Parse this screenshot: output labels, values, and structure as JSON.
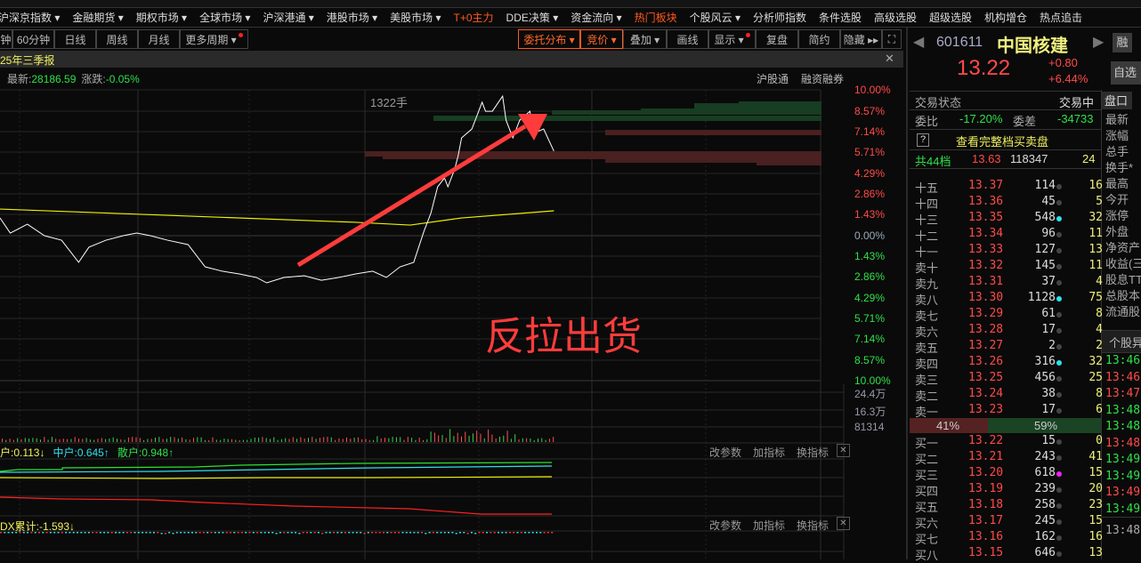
{
  "menu": [
    "沪深京指数 ▾",
    "金融期货 ▾",
    "期权市场 ▾",
    "全球市场 ▾",
    "沪深港通 ▾",
    "港股市场 ▾",
    "美股市场 ▾",
    "T+0主力",
    "DDE决策 ▾",
    "资金流向 ▾",
    "热门板块",
    "个股风云 ▾",
    "分析师指数",
    "条件选股",
    "高级选股",
    "超级选股",
    "机构增仓",
    "热点追击"
  ],
  "menu_hot": [
    7,
    10
  ],
  "toolbar": {
    "min": "钟",
    "min60": "60分钟",
    "day": "日线",
    "week": "周线",
    "month": "月线",
    "more": "更多周期 ▾",
    "entrust": "委托分布 ▾",
    "auction": "竞价 ▾",
    "overlay": "叠加 ▾",
    "draw": "画线",
    "display": "显示 ▾",
    "review": "复盘",
    "brief": "简约",
    "hide": "隐藏 ▸▸",
    "fullscreen": "⛶"
  },
  "title_strip": {
    "text": "25年三季报",
    "close": "✕"
  },
  "info": {
    "latest_label": "最新:",
    "latest": "28186.59",
    "change_label": "涨跌:",
    "change": "-0.05%",
    "tag1": "沪股通",
    "tag2": "融资融券"
  },
  "chart": {
    "volume_hint": "1322手",
    "annotation": "反拉出货",
    "axis_up": [
      "10.00%",
      "8.57%",
      "7.14%",
      "5.71%",
      "4.29%",
      "2.86%",
      "1.43%"
    ],
    "axis_zero": "0.00%",
    "axis_down": [
      "1.43%",
      "2.86%",
      "4.29%",
      "5.71%",
      "7.14%",
      "8.57%",
      "10.00%"
    ],
    "volume_axis": [
      "24.4万",
      "16.3万",
      "81314"
    ],
    "price_series": [
      [
        0,
        1.22
      ],
      [
        3,
        0.18
      ],
      [
        8,
        0.79
      ],
      [
        13,
        0
      ],
      [
        18,
        -0.31
      ],
      [
        23,
        -1.83
      ],
      [
        26,
        -0.79
      ],
      [
        31,
        -0.31
      ],
      [
        36,
        0
      ],
      [
        40,
        0.18
      ],
      [
        44,
        0
      ],
      [
        49,
        -0.31
      ],
      [
        55,
        -0.61
      ],
      [
        60,
        -2.14
      ],
      [
        65,
        -2.44
      ],
      [
        70,
        -2.63
      ],
      [
        75,
        -2.87
      ],
      [
        78,
        -3.24
      ],
      [
        83,
        -2.87
      ],
      [
        89,
        -2.75
      ],
      [
        94,
        -3.06
      ],
      [
        99,
        -2.87
      ],
      [
        104,
        -2.63
      ],
      [
        109,
        -2.44
      ],
      [
        113,
        -2.87
      ],
      [
        117,
        -2.14
      ],
      [
        121,
        -1.83
      ],
      [
        124,
        0.31
      ],
      [
        126,
        1.53
      ],
      [
        128,
        3.36
      ],
      [
        130,
        3.97
      ],
      [
        131,
        3.36
      ],
      [
        133,
        4.58
      ],
      [
        134,
        5.5
      ],
      [
        135,
        6.72
      ],
      [
        138,
        7.33
      ],
      [
        141,
        9.17
      ],
      [
        142,
        8.55
      ],
      [
        144,
        8.55
      ],
      [
        147,
        9.59
      ],
      [
        148,
        7.94
      ],
      [
        150,
        6.72
      ],
      [
        152,
        7.94
      ],
      [
        155,
        8.55
      ],
      [
        156,
        7.03
      ],
      [
        159,
        7.33
      ],
      [
        162,
        5.81
      ]
    ],
    "avg_series": [
      [
        0,
        1.83
      ],
      [
        104,
        0.92
      ],
      [
        120,
        0.73
      ],
      [
        135,
        1.22
      ],
      [
        162,
        1.71
      ]
    ],
    "colors": {
      "price": "#ffffff",
      "avg": "#f0f000",
      "up": "#ff4a4a",
      "down": "#2ee04a"
    }
  },
  "indicator1": {
    "big": "户:0.113↓",
    "mid": "中户:0.645↑",
    "small": "散户:0.948↑",
    "btns": [
      "改参数",
      "加指标",
      "换指标"
    ],
    "close": "✕"
  },
  "indicator2": {
    "dx": "DX累计:-1.593↓",
    "btns": [
      "改参数",
      "加指标",
      "换指标"
    ],
    "close": "✕"
  },
  "quote": {
    "code": "601611",
    "name": "中国核建",
    "price": "13.22",
    "change": "+0.80",
    "change_pct": "+6.44%",
    "btn_margin": "融",
    "btn_watch": "自选"
  },
  "status": {
    "label": "交易状态",
    "value": "交易中",
    "tab": "盘口",
    "ratio_label": "委比",
    "ratio": "-17.20%",
    "diff_label": "委差",
    "diff": "-34733",
    "help": "?",
    "full_book": "查看完整档买卖盘",
    "total_label": "共44档",
    "total_price": "13.63",
    "total_vol": "118347",
    "total_cnt": "24"
  },
  "asks": [
    {
      "l": "十五",
      "p": "13.37",
      "v": "114",
      "d": "gray",
      "n": "16"
    },
    {
      "l": "十四",
      "p": "13.36",
      "v": "45",
      "d": "gray",
      "n": "5"
    },
    {
      "l": "十三",
      "p": "13.35",
      "v": "548",
      "d": "cyan",
      "n": "32"
    },
    {
      "l": "十二",
      "p": "13.34",
      "v": "96",
      "d": "gray",
      "n": "11"
    },
    {
      "l": "十一",
      "p": "13.33",
      "v": "127",
      "d": "gray",
      "n": "13"
    },
    {
      "l": "卖十",
      "p": "13.32",
      "v": "145",
      "d": "gray",
      "n": "11"
    },
    {
      "l": "卖九",
      "p": "13.31",
      "v": "37",
      "d": "gray",
      "n": "4"
    },
    {
      "l": "卖八",
      "p": "13.30",
      "v": "1128",
      "d": "cyan",
      "n": "75"
    },
    {
      "l": "卖七",
      "p": "13.29",
      "v": "61",
      "d": "gray",
      "n": "8"
    },
    {
      "l": "卖六",
      "p": "13.28",
      "v": "17",
      "d": "gray",
      "n": "4"
    },
    {
      "l": "卖五",
      "p": "13.27",
      "v": "2",
      "d": "gray",
      "n": "2"
    },
    {
      "l": "卖四",
      "p": "13.26",
      "v": "316",
      "d": "cyan",
      "n": "32"
    },
    {
      "l": "卖三",
      "p": "13.25",
      "v": "456",
      "d": "gray",
      "n": "25"
    },
    {
      "l": "卖二",
      "p": "13.24",
      "v": "38",
      "d": "gray",
      "n": "8"
    },
    {
      "l": "卖一",
      "p": "13.23",
      "v": "17",
      "d": "gray",
      "n": "6"
    }
  ],
  "balance": {
    "buy_pct": "41%",
    "sell_pct": "59%",
    "buy_value": 41
  },
  "bids": [
    {
      "l": "买一",
      "p": "13.22",
      "v": "15",
      "d": "gray",
      "n": "0"
    },
    {
      "l": "买二",
      "p": "13.21",
      "v": "243",
      "d": "gray",
      "n": "41"
    },
    {
      "l": "买三",
      "p": "13.20",
      "v": "618",
      "d": "magenta",
      "n": "15"
    },
    {
      "l": "买四",
      "p": "13.19",
      "v": "239",
      "d": "gray",
      "n": "20"
    },
    {
      "l": "买五",
      "p": "13.18",
      "v": "258",
      "d": "gray",
      "n": "23"
    },
    {
      "l": "买六",
      "p": "13.17",
      "v": "245",
      "d": "gray",
      "n": "15"
    },
    {
      "l": "买七",
      "p": "13.16",
      "v": "162",
      "d": "gray",
      "n": "16"
    },
    {
      "l": "买八",
      "p": "13.15",
      "v": "646",
      "d": "gray",
      "n": "13"
    }
  ],
  "side_labels": [
    "最新",
    "涨幅",
    "总手",
    "换手*",
    "最高",
    "今开",
    "涨停",
    "外盘",
    "净资产",
    "收益(三",
    "股息TTM",
    "总股本",
    "流通股"
  ],
  "alerts_title": "个股异",
  "alerts": [
    {
      "t": "13:46:",
      "c": "g"
    },
    {
      "t": "13:46:",
      "c": "r"
    },
    {
      "t": "13:47:",
      "c": "r"
    },
    {
      "t": "13:48:",
      "c": "g"
    },
    {
      "t": "13:48:",
      "c": "g"
    },
    {
      "t": "13:48:",
      "c": "r"
    },
    {
      "t": "13:49:",
      "c": "g"
    },
    {
      "t": "13:49:",
      "c": "g"
    },
    {
      "t": "13:49:",
      "c": "r"
    },
    {
      "t": "13:49:",
      "c": "g"
    }
  ],
  "alerts_footer": "13:48:"
}
